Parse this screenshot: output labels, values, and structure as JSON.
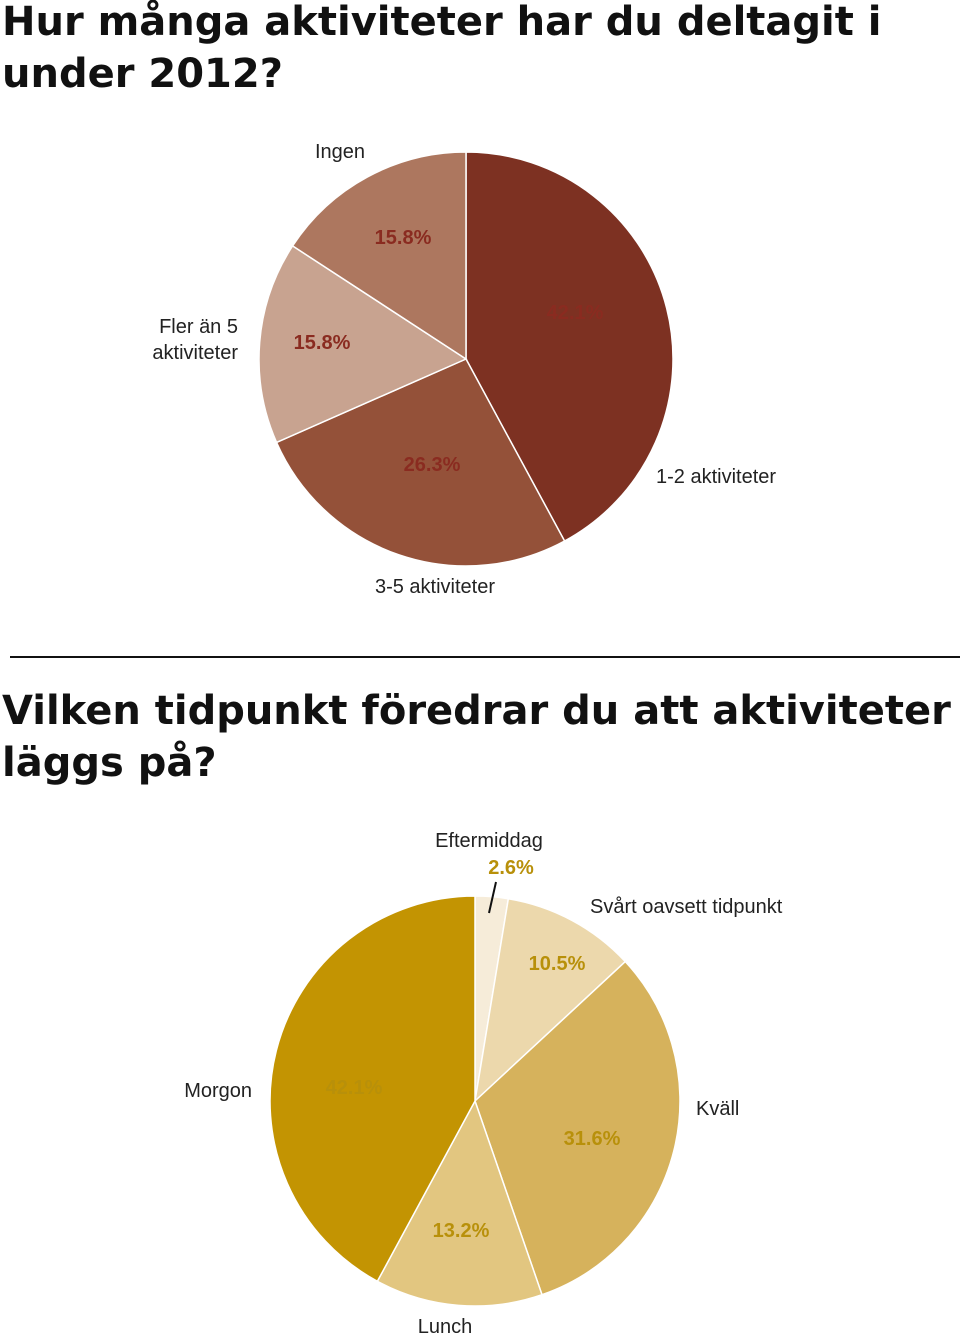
{
  "titles": {
    "q1": "Hur många aktiviteter har du deltagit i under 2012?",
    "q2": "Vilken tidpunkt föredrar du att aktiviteter läggs på?"
  },
  "chart_data": [
    {
      "type": "pie",
      "title": "Hur många aktiviteter har du deltagit i under 2012?",
      "start_angle_deg": 0,
      "direction": "clockwise",
      "percent_color": "#8a2b20",
      "slices": [
        {
          "label": "1-2 aktiviteter",
          "label_lines": [
            "1-2 aktiviteter"
          ],
          "value": 42.1,
          "display": "42.1%",
          "color": "#7d3122"
        },
        {
          "label": "3-5 aktiviteter",
          "label_lines": [
            "3-5 aktiviteter"
          ],
          "value": 26.3,
          "display": "26.3%",
          "color": "#945139"
        },
        {
          "label": "Fler än 5 aktiviteter",
          "label_lines": [
            "Fler än 5",
            "aktiviteter"
          ],
          "value": 15.8,
          "display": "15.8%",
          "color": "#c8a390"
        },
        {
          "label": "Ingen",
          "label_lines": [
            "Ingen"
          ],
          "value": 15.8,
          "display": "15.8%",
          "color": "#ad775f"
        }
      ]
    },
    {
      "type": "pie",
      "title": "Vilken tidpunkt föredrar du att aktiviteter läggs på?",
      "start_angle_deg": 0,
      "direction": "clockwise",
      "percent_color": "#b8900a",
      "slices": [
        {
          "label": "Eftermiddag",
          "label_lines": [
            "Eftermiddag"
          ],
          "value": 2.6,
          "display": "2.6%",
          "color": "#f6ecd9"
        },
        {
          "label": "Svårt oavsett tidpunkt",
          "label_lines": [
            "Svårt oavsett tidpunkt"
          ],
          "value": 10.5,
          "display": "10.5%",
          "color": "#ecd8ac"
        },
        {
          "label": "Kväll",
          "label_lines": [
            "Kväll"
          ],
          "value": 31.6,
          "display": "31.6%",
          "color": "#d6b25c"
        },
        {
          "label": "Lunch",
          "label_lines": [
            "Lunch"
          ],
          "value": 13.2,
          "display": "13.2%",
          "color": "#e2c680"
        },
        {
          "label": "Morgon",
          "label_lines": [
            "Morgon"
          ],
          "value": 42.1,
          "display": "42.1%",
          "color": "#c39402"
        }
      ]
    }
  ]
}
